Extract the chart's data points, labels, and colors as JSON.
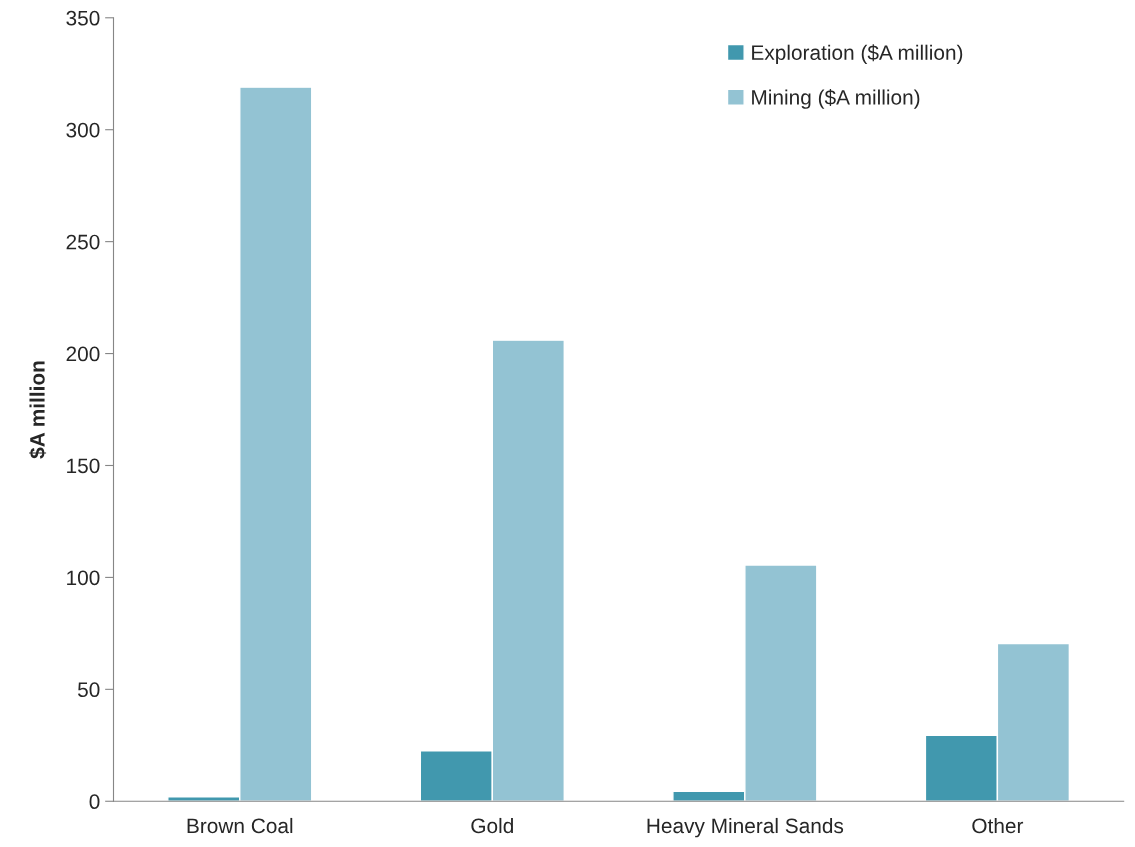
{
  "chart_data": {
    "type": "bar",
    "ylabel": "$A million",
    "categories": [
      "Brown Coal",
      "Gold",
      "Heavy Mineral Sands",
      "Other"
    ],
    "series": [
      {
        "name": "Exploration ($A million)",
        "color": "#4198ae",
        "values": [
          2,
          22.5,
          4.5,
          29.5
        ]
      },
      {
        "name": "Mining ($A million)",
        "color": "#93c3d3",
        "values": [
          319,
          206,
          105.5,
          70.5
        ]
      }
    ],
    "ylim": [
      0,
      350
    ],
    "yticks": [
      0,
      50,
      100,
      150,
      200,
      250,
      300,
      350
    ],
    "grid": false,
    "legend": "top right"
  }
}
